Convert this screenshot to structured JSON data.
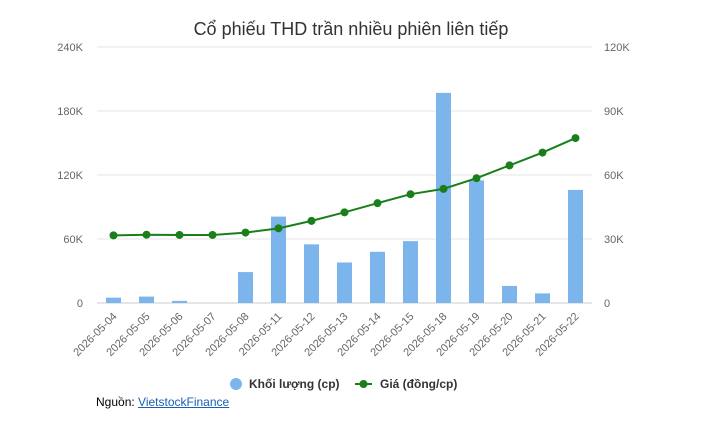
{
  "chart_data": {
    "type": "bar-line-combo",
    "title": "Cổ phiếu THD trần nhiều phiên liên tiếp",
    "categories": [
      "2026-05-04",
      "2026-05-05",
      "2026-05-06",
      "2026-05-07",
      "2026-05-08",
      "2026-05-11",
      "2026-05-12",
      "2026-05-13",
      "2026-05-14",
      "2026-05-15",
      "2026-05-18",
      "2026-05-19",
      "2026-05-20",
      "2026-05-21",
      "2026-05-22"
    ],
    "series": [
      {
        "name": "Khối lượng (cp)",
        "type": "bar",
        "axis": "left",
        "color": "#7cb5ec",
        "values": [
          5000,
          6000,
          2000,
          0,
          29000,
          81000,
          55000,
          38000,
          48000,
          58000,
          197000,
          115000,
          16000,
          9000,
          106000
        ]
      },
      {
        "name": "Giá (đồng/cp)",
        "type": "line",
        "axis": "right",
        "color": "#1a7f1a",
        "values": [
          31700,
          32000,
          31900,
          31900,
          33000,
          35000,
          38500,
          42500,
          46800,
          51000,
          53500,
          58500,
          64500,
          70500,
          77300
        ]
      }
    ],
    "y_left": {
      "min": 0,
      "max": 240000,
      "ticks": [
        0,
        60000,
        120000,
        180000,
        240000
      ],
      "tick_labels": [
        "0",
        "60K",
        "120K",
        "180K",
        "240K"
      ]
    },
    "y_right": {
      "min": 0,
      "max": 120000,
      "ticks": [
        0,
        30000,
        60000,
        90000,
        120000
      ],
      "tick_labels": [
        "0",
        "30K",
        "60K",
        "90K",
        "120K"
      ]
    },
    "grid": true,
    "legend_position": "bottom"
  },
  "source": {
    "label": "Nguồn:",
    "link_text": "VietstockFinance"
  }
}
